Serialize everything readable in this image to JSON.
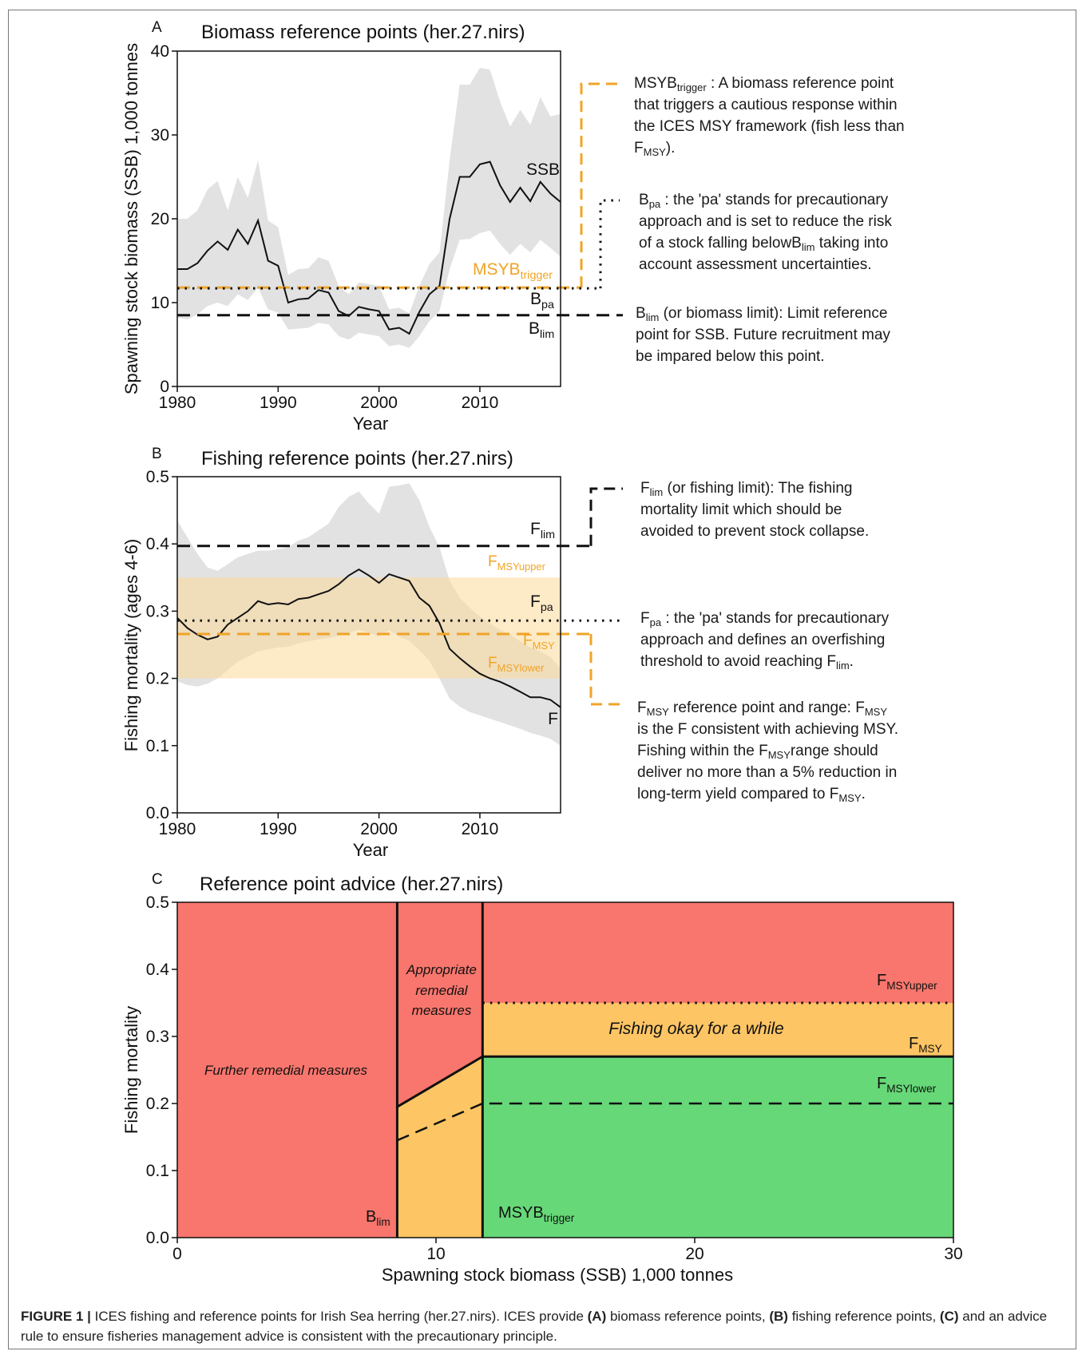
{
  "chart_data": [
    {
      "panel": "A",
      "type": "line",
      "title": "Biomass reference points (her.27.nirs)",
      "xlabel": "Year",
      "ylabel": "Spawning stock biomass (SSB) 1,000 tonnes",
      "xlim": [
        1980,
        2018
      ],
      "ylim": [
        0,
        40
      ],
      "xticks": [
        1980,
        1990,
        2000,
        2010
      ],
      "yticks": [
        0,
        10,
        20,
        30,
        40
      ],
      "series": [
        {
          "name": "SSB",
          "x": [
            1980,
            1981,
            1982,
            1983,
            1984,
            1985,
            1986,
            1987,
            1988,
            1989,
            1990,
            1991,
            1992,
            1993,
            1994,
            1995,
            1996,
            1997,
            1998,
            1999,
            2000,
            2001,
            2002,
            2003,
            2004,
            2005,
            2006,
            2007,
            2008,
            2009,
            2010,
            2011,
            2012,
            2013,
            2014,
            2015,
            2016,
            2017,
            2018
          ],
          "y": [
            14,
            14,
            14.7,
            16.2,
            17.3,
            16.3,
            18.7,
            17,
            19.8,
            15,
            14.4,
            10,
            10.4,
            10.5,
            11.5,
            11.2,
            9,
            8.4,
            9.5,
            9.2,
            9,
            6.8,
            7,
            6.3,
            8.9,
            11,
            12,
            20,
            25,
            25,
            26.5,
            26.8,
            24,
            22,
            23.7,
            22.1,
            24.4,
            23,
            22
          ],
          "lower": [
            8.2,
            8,
            8.6,
            9.6,
            10,
            9.6,
            11,
            10.3,
            11.8,
            9.2,
            8.8,
            6.8,
            6.9,
            7,
            7.6,
            7.4,
            6,
            5.6,
            6.4,
            6.2,
            6,
            4.8,
            5,
            4.6,
            6,
            7.8,
            9,
            14,
            17.5,
            17.6,
            18.3,
            18.6,
            17,
            15.7,
            17,
            16,
            17.5,
            16.5,
            15.5
          ],
          "upper": [
            20,
            20,
            21,
            23.5,
            24.5,
            21,
            25,
            22.5,
            27,
            19.8,
            19,
            13.3,
            14,
            14.1,
            15.4,
            15,
            12,
            11,
            12.4,
            12.2,
            12,
            9.2,
            9.4,
            8.7,
            12,
            14.6,
            16,
            27,
            36,
            36,
            38,
            37.8,
            34,
            31,
            33,
            31.2,
            34.5,
            32.2,
            32.5
          ]
        }
      ],
      "reference_lines": [
        {
          "label": "MSYB",
          "sub": "trigger",
          "value": 11.8,
          "style": "dashed",
          "color": "#f0a426"
        },
        {
          "label": "B",
          "sub": "pa",
          "value": 11.8,
          "style": "dotted",
          "color": "#111111"
        },
        {
          "label": "B",
          "sub": "lim",
          "value": 8.5,
          "style": "dashed",
          "color": "#111111"
        }
      ]
    },
    {
      "panel": "B",
      "type": "line",
      "title": "Fishing reference points (her.27.nirs)",
      "xlabel": "Year",
      "ylabel": "Fishing mortality (ages 4-6)",
      "xlim": [
        1980,
        2018
      ],
      "ylim": [
        0,
        0.5
      ],
      "xticks": [
        1980,
        1990,
        2000,
        2010
      ],
      "yticks": [
        0.0,
        0.1,
        0.2,
        0.3,
        0.4,
        0.5
      ],
      "series": [
        {
          "name": "F",
          "x": [
            1980,
            1981,
            1982,
            1983,
            1984,
            1985,
            1986,
            1987,
            1988,
            1989,
            1990,
            1991,
            1992,
            1993,
            1994,
            1995,
            1996,
            1997,
            1998,
            1999,
            2000,
            2001,
            2002,
            2003,
            2004,
            2005,
            2006,
            2007,
            2008,
            2009,
            2010,
            2011,
            2012,
            2013,
            2014,
            2015,
            2016,
            2017,
            2018
          ],
          "y": [
            0.29,
            0.275,
            0.265,
            0.258,
            0.262,
            0.28,
            0.29,
            0.3,
            0.315,
            0.31,
            0.312,
            0.31,
            0.318,
            0.32,
            0.325,
            0.33,
            0.34,
            0.353,
            0.362,
            0.353,
            0.342,
            0.355,
            0.35,
            0.345,
            0.32,
            0.308,
            0.282,
            0.244,
            0.23,
            0.218,
            0.207,
            0.2,
            0.195,
            0.188,
            0.18,
            0.172,
            0.172,
            0.168,
            0.157
          ],
          "lower": [
            0.196,
            0.19,
            0.188,
            0.192,
            0.2,
            0.212,
            0.225,
            0.232,
            0.24,
            0.243,
            0.246,
            0.247,
            0.252,
            0.255,
            0.258,
            0.26,
            0.264,
            0.268,
            0.272,
            0.268,
            0.262,
            0.272,
            0.262,
            0.256,
            0.242,
            0.226,
            0.2,
            0.17,
            0.158,
            0.15,
            0.145,
            0.14,
            0.135,
            0.13,
            0.125,
            0.119,
            0.115,
            0.11,
            0.1
          ],
          "upper": [
            0.435,
            0.41,
            0.385,
            0.365,
            0.36,
            0.37,
            0.38,
            0.385,
            0.39,
            0.39,
            0.392,
            0.395,
            0.405,
            0.41,
            0.42,
            0.43,
            0.455,
            0.47,
            0.478,
            0.46,
            0.445,
            0.485,
            0.487,
            0.49,
            0.465,
            0.425,
            0.395,
            0.345,
            0.32,
            0.305,
            0.292,
            0.282,
            0.272,
            0.265,
            0.255,
            0.246,
            0.24,
            0.232,
            0.215
          ]
        }
      ],
      "band": {
        "label": "F",
        "sub_upper": "MSYupper",
        "sub_lower": "MSYlower",
        "range": [
          0.2,
          0.35
        ],
        "color": "#fde9c2"
      },
      "reference_lines": [
        {
          "label": "F",
          "sub": "lim",
          "value": 0.397,
          "style": "dashed",
          "color": "#111111"
        },
        {
          "label": "F",
          "sub": "pa",
          "value": 0.286,
          "style": "dotted",
          "color": "#111111"
        },
        {
          "label": "F",
          "sub": "MSY",
          "value": 0.266,
          "style": "dashed",
          "color": "#f0a426"
        }
      ]
    },
    {
      "panel": "C",
      "type": "area",
      "title": "Reference point advice (her.27.nirs)",
      "xlabel": "Spawning stock biomass (SSB) 1,000 tonnes",
      "ylabel": "Fishing mortality",
      "xlim": [
        0,
        30
      ],
      "ylim": [
        0,
        0.5
      ],
      "xticks": [
        0,
        10,
        20,
        30
      ],
      "yticks": [
        0.0,
        0.1,
        0.2,
        0.3,
        0.4,
        0.5
      ],
      "Blim": 8.5,
      "MSYBtrigger": 11.8,
      "FMSY": 0.27,
      "FMSYupper": 0.35,
      "FMSYlower": 0.2,
      "F_at_Blim": 0.195,
      "Flower_at_Blim": 0.145,
      "colors": {
        "red": "#f8766d",
        "orange": "#fdc564",
        "green": "#66d878"
      },
      "region_labels": [
        "Further remedial measures",
        "Appropriate",
        "remedial",
        "measures",
        "Fishing okay for a while"
      ],
      "line_labels": [
        {
          "label": "F",
          "sub": "MSYupper"
        },
        {
          "label": "F",
          "sub": "MSY"
        },
        {
          "label": "F",
          "sub": "MSYlower"
        },
        {
          "label": "B",
          "sub": "lim"
        },
        {
          "label": "MSYB",
          "sub": "trigger"
        }
      ]
    }
  ],
  "panels": {
    "A": {
      "letter": "A"
    },
    "B": {
      "letter": "B"
    },
    "C": {
      "letter": "C"
    }
  },
  "annotations": {
    "msy_main": "MSYB",
    "msy_sub": "trigger",
    "msy_rest1": " : A biomass reference point",
    "msy_rest2": "that triggers a cautious response within",
    "msy_rest3": "the ICES MSY framework (fish less than",
    "msy_f": "F",
    "msy_fsub": "MSY",
    "msy_end": ").",
    "bpa_main": "B",
    "bpa_sub": "pa",
    "bpa_rest1": " : the 'pa' stands for precautionary",
    "bpa_rest2": "approach and is set to reduce the risk",
    "bpa_rest3a": "of a stock falling belowB",
    "bpa_rest3sub": "lim",
    "bpa_rest3b": " taking into",
    "bpa_rest4": "account assessment uncertainties.",
    "blim_main": "B",
    "blim_sub": "lim",
    "blim_rest1": " (or biomass limit): Limit reference",
    "blim_rest2": "point for SSB. Future recruitment may",
    "blim_rest3": "be impared below this point.",
    "flim_main": "F",
    "flim_sub": "lim",
    "flim_rest1": " (or fishing limit): The fishing",
    "flim_rest2": "mortality limit which should be",
    "flim_rest3": "avoided to prevent stock collapse.",
    "fpa_main": "F",
    "fpa_sub": "pa",
    "fpa_rest1": " : the 'pa' stands for precautionary",
    "fpa_rest2": "approach and defines an overfishing",
    "fpa_rest3a": "threshold to avoid reaching F",
    "fpa_rest3sub": "lim",
    "fpa_rest3b": ".",
    "fmsy_main": "F",
    "fmsy_sub": "MSY",
    "fmsy_rest1a": " reference point and range: F",
    "fmsy_rest1sub": "MSY",
    "fmsy_rest2": "is the F consistent with achieving MSY.",
    "fmsy_rest3a": "Fishing within the F",
    "fmsy_rest3sub": "MSY",
    "fmsy_rest3b": "range should",
    "fmsy_rest4": "deliver no more than a 5% reduction in",
    "fmsy_rest5a": "long-term yield compared to F",
    "fmsy_rest5sub": "MSY",
    "fmsy_rest5b": "."
  },
  "caption": {
    "lead": "FIGURE 1 |",
    "t1": " ICES fishing and reference points for Irish Sea herring (her.27.nirs). ICES provide ",
    "a": "(A)",
    "t2": " biomass reference points, ",
    "b": "(B)",
    "t3": " fishing reference points, ",
    "c": "(C)",
    "t4": " and an advice rule to ensure fisheries management advice is consistent with the precautionary principle."
  }
}
